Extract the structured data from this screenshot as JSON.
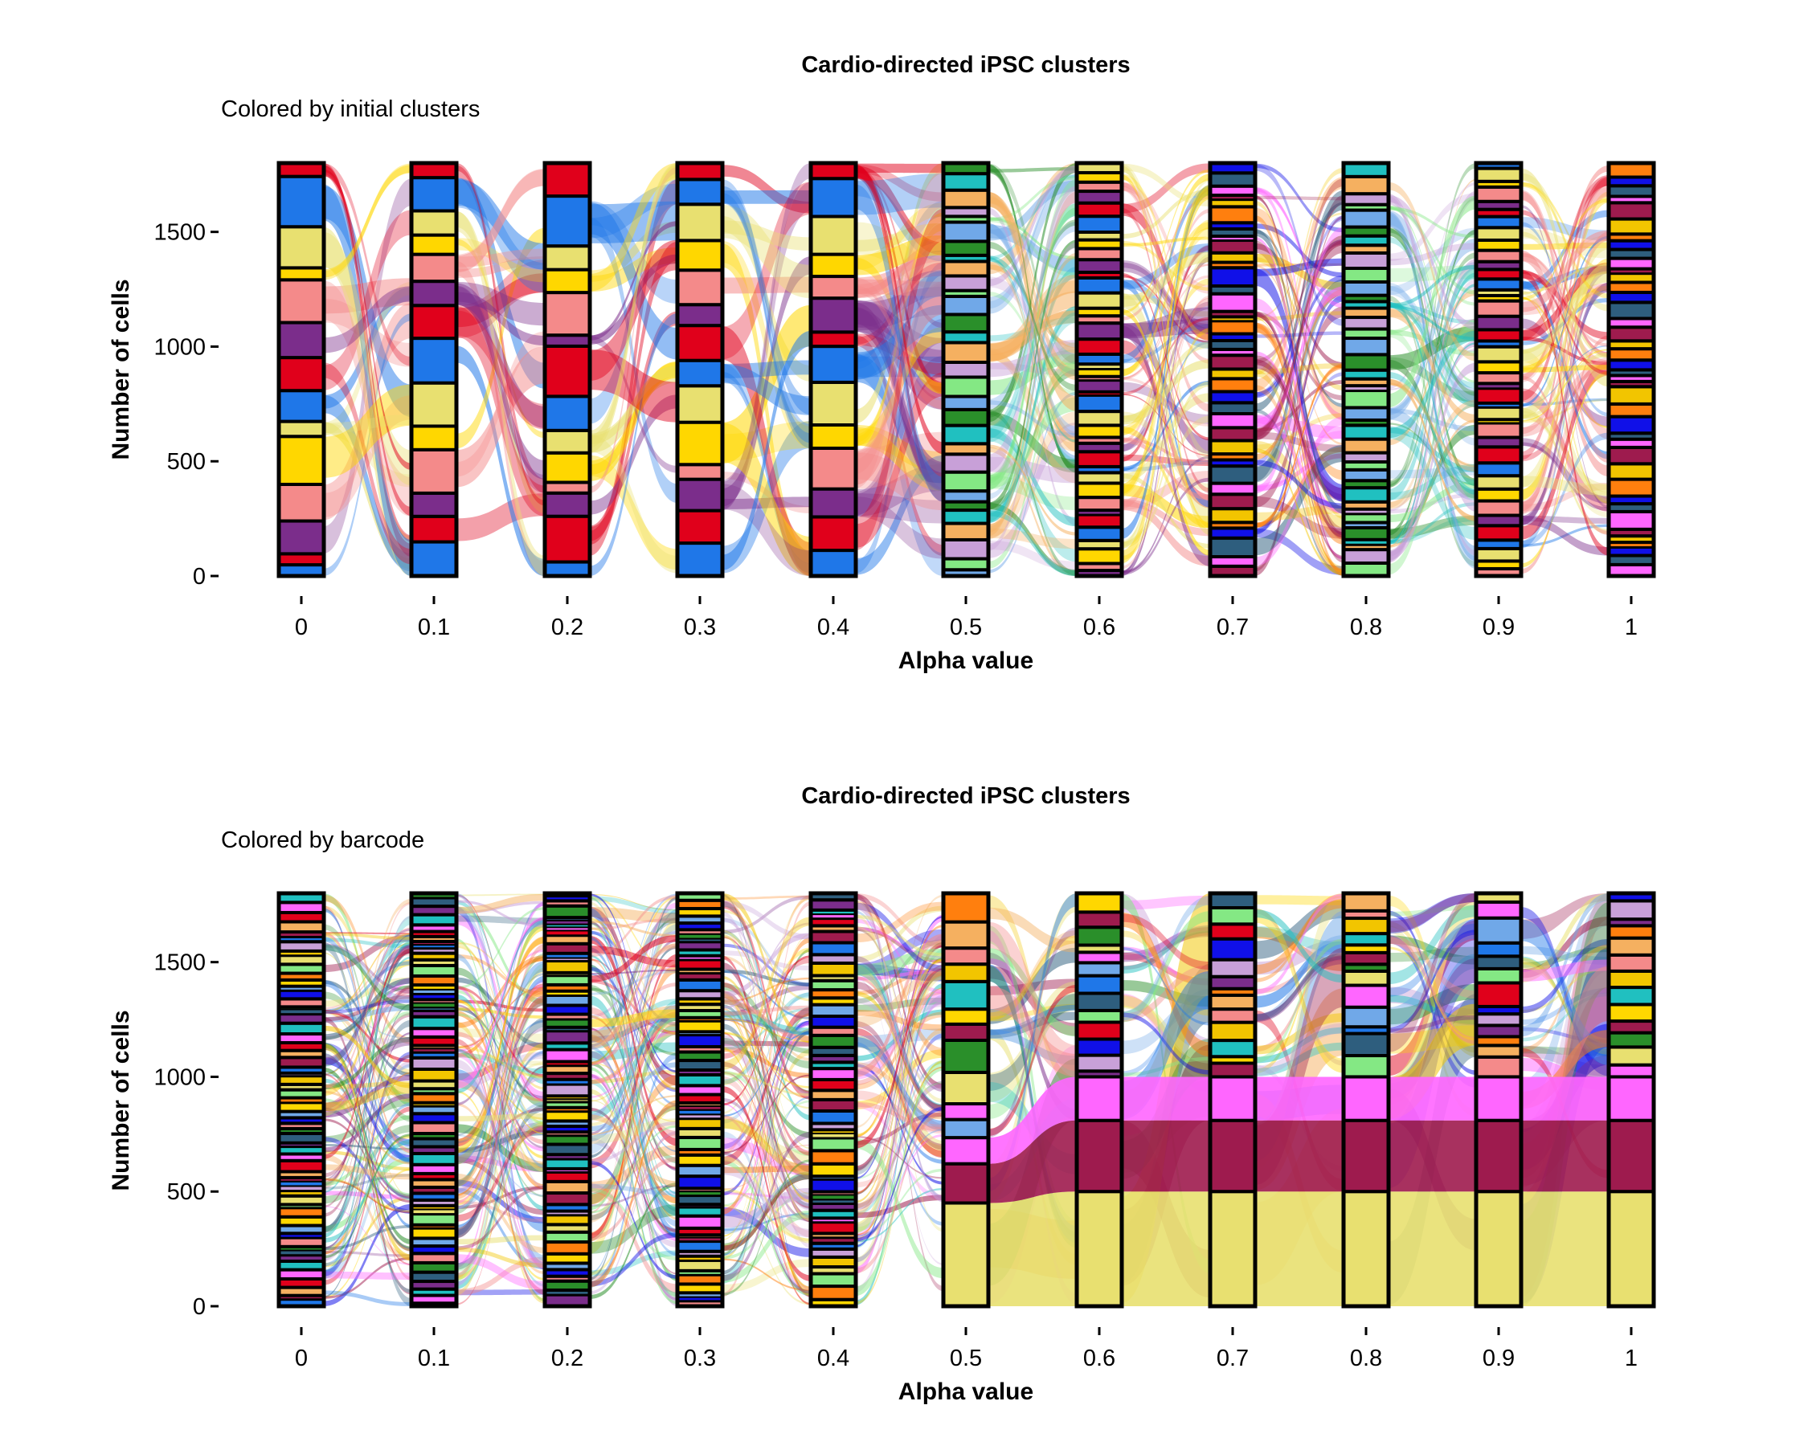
{
  "colors": {
    "palette": [
      "#1f77e8",
      "#ff7f0e",
      "#2a8f2a",
      "#e0001b",
      "#f2c500",
      "#70a8e8",
      "#7b2d8b",
      "#9e1b4e",
      "#84e884",
      "#f48a8a",
      "#ff66ff",
      "#c8a0d8",
      "#ffd700",
      "#2e5e7e",
      "#f5b060",
      "#e8e070",
      "#1010e8",
      "#20c0c0"
    ],
    "alluvium_opacity": 0.55
  },
  "chart_data": [
    {
      "type": "alluvial",
      "title": "Cardio-directed iPSC clusters",
      "subtitle": "Colored by initial clusters",
      "xlabel": "Alpha value",
      "ylabel": "Number of cells",
      "x": [
        "0",
        "0.1",
        "0.2",
        "0.3",
        "0.4",
        "0.5",
        "0.6",
        "0.7",
        "0.8",
        "0.9",
        "1"
      ],
      "yticks": [
        0,
        500,
        1000,
        1500
      ],
      "ytick_labels": [
        "0",
        "500",
        "1000",
        "1500"
      ],
      "ylim": [
        0,
        1800
      ],
      "total_cells": 1800,
      "strata_per_alpha": [
        14,
        14,
        14,
        14,
        14,
        30,
        40,
        40,
        40,
        40,
        40
      ],
      "color_by": "initial_cluster"
    },
    {
      "type": "alluvial",
      "title": "Cardio-directed iPSC clusters",
      "subtitle": "Colored by barcode",
      "xlabel": "Alpha value",
      "ylabel": "Number of cells",
      "x": [
        "0",
        "0.1",
        "0.2",
        "0.3",
        "0.4",
        "0.5",
        "0.6",
        "0.7",
        "0.8",
        "0.9",
        "1"
      ],
      "yticks": [
        0,
        500,
        1000,
        1500
      ],
      "ytick_labels": [
        "0",
        "500",
        "1000",
        "1500"
      ],
      "ylim": [
        0,
        1800
      ],
      "total_cells": 1800,
      "strata_per_alpha": [
        60,
        60,
        60,
        60,
        50,
        14,
        16,
        16,
        16,
        16,
        16
      ],
      "color_by": "barcode",
      "dominant_barcodes": [
        {
          "color": "#e8e070",
          "cells_at_alpha_1": 500
        },
        {
          "color": "#9e1b4e",
          "cells_at_alpha_1": 310
        },
        {
          "color": "#ff66ff",
          "cells_at_alpha_1": 190
        }
      ]
    }
  ]
}
